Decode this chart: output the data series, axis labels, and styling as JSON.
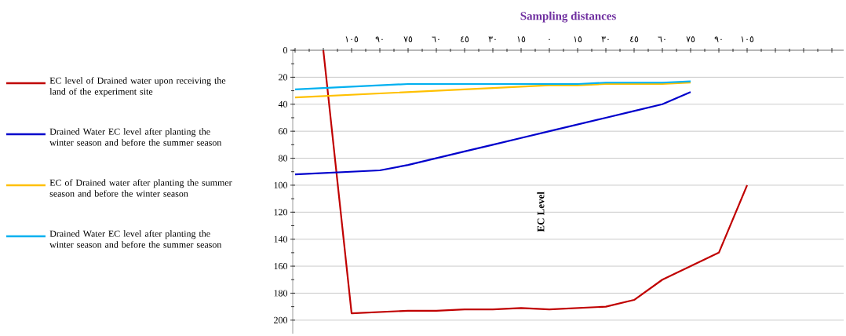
{
  "chart_data": {
    "type": "line",
    "title": "Sampling distances",
    "ylabel": "EC Level",
    "categories": [
      null,
      null,
      "١٠٥",
      "٩٠",
      "٧٥",
      "٦٠",
      "٤٥",
      "٣٠",
      "١٥",
      "٠",
      "١٥",
      "٣٠",
      "٤٥",
      "٦٠",
      "٧٥",
      "٩٠",
      "١٠٥"
    ],
    "series": [
      {
        "name": "EC level of Drained water upon receiving the land of the experiment site",
        "color": "#c00000",
        "values": [
          null,
          0,
          195,
          194,
          193,
          193,
          192,
          192,
          191,
          192,
          191,
          190,
          185,
          170,
          160,
          150,
          100
        ]
      },
      {
        "name": "Drained Water EC level after planting the winter season and before the summer season",
        "color": "#0000cc",
        "values": [
          92,
          91,
          90,
          89,
          85,
          80,
          75,
          70,
          65,
          60,
          55,
          50,
          45,
          40,
          31,
          null,
          null
        ]
      },
      {
        "name": "EC of Drained water after planting the summer season and before the winter season",
        "color": "#ffc000",
        "values": [
          35,
          34,
          33,
          32,
          31,
          30,
          29,
          28,
          27,
          26,
          26,
          25,
          25,
          25,
          24,
          null,
          null
        ]
      },
      {
        "name": "Drained Water EC level after planting the winter season and before the summer season",
        "color": "#00b0f0",
        "values": [
          29,
          28,
          27,
          26,
          25,
          25,
          25,
          25,
          25,
          25,
          25,
          24,
          24,
          24,
          23,
          null,
          null
        ]
      }
    ],
    "ylim": [
      210,
      0
    ],
    "yticks": [
      0,
      20,
      40,
      60,
      80,
      100,
      120,
      140,
      160,
      180,
      200
    ],
    "grid": "y",
    "legend": "left",
    "line_style": "solid",
    "marker": "none"
  }
}
